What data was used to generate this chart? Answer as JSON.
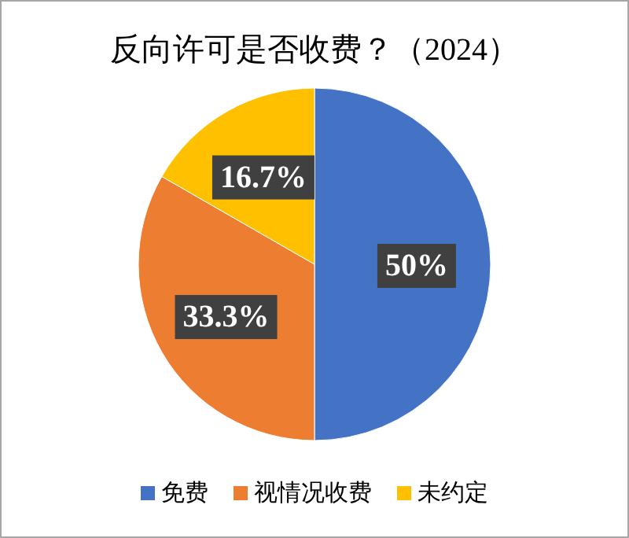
{
  "chart_data": {
    "type": "pie",
    "title": "反向许可是否收费？（2024）",
    "categories": [
      "免费",
      "视情况收费",
      "未约定"
    ],
    "values": [
      50,
      33.3,
      16.7
    ],
    "colors": [
      "#4472c4",
      "#ed7d31",
      "#ffc000"
    ],
    "value_labels": [
      "50%",
      "33.3%",
      "16.7%"
    ],
    "legend": "bottom"
  }
}
